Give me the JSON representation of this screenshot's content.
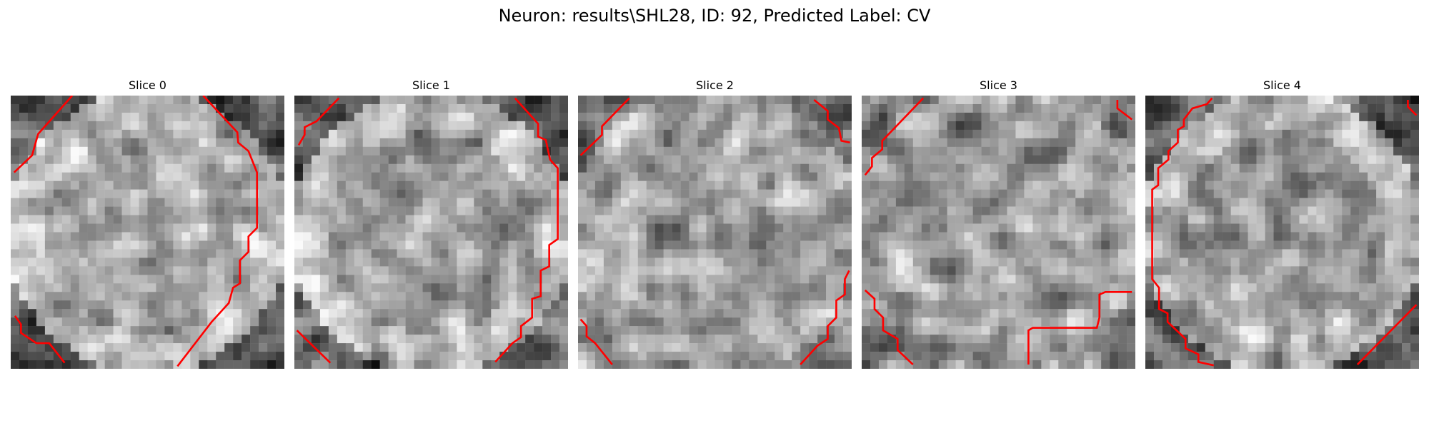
{
  "figure": {
    "title": "Neuron: results\\SHL28, ID: 92, Predicted Label: CV"
  },
  "panels": [
    {
      "title": "Slice 0",
      "seed": 11,
      "bright_ring": true
    },
    {
      "title": "Slice 1",
      "seed": 23,
      "bright_ring": true
    },
    {
      "title": "Slice 2",
      "seed": 37,
      "bright_ring": false
    },
    {
      "title": "Slice 3",
      "seed": 41,
      "bright_ring": false
    },
    {
      "title": "Slice 4",
      "seed": 59,
      "bright_ring": true
    }
  ],
  "colors": {
    "contour": "#ff0000",
    "background": "#ffffff"
  }
}
